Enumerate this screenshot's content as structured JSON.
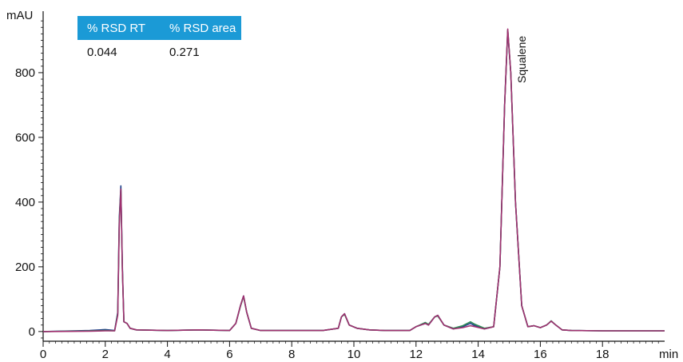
{
  "chart_data": {
    "type": "line",
    "title": "",
    "xlabel": "min",
    "ylabel": "mAU",
    "xlim": [
      0,
      20
    ],
    "ylim": [
      -30,
      990
    ],
    "xticks": [
      0,
      2,
      4,
      6,
      8,
      10,
      12,
      14,
      16,
      18
    ],
    "yticks": [
      0,
      200,
      400,
      600,
      800
    ],
    "annotations": [
      {
        "text": "Squalene",
        "x": 15.0,
        "y": 935
      }
    ],
    "table": {
      "headers": [
        "% RSD RT",
        "% RSD area"
      ],
      "values": [
        "0.044",
        "0.271"
      ]
    },
    "series": [
      {
        "color": "#1f3f8a",
        "x": [
          0,
          1.5,
          2.0,
          2.3,
          2.4,
          2.45,
          2.5,
          2.55,
          2.6,
          2.7,
          2.8,
          3.0,
          4,
          5,
          6,
          6.2,
          6.35,
          6.45,
          6.55,
          6.7,
          7,
          8,
          9,
          9.5,
          9.6,
          9.7,
          9.85,
          10.1,
          10.5,
          11,
          11.8,
          12.0,
          12.3,
          12.4,
          12.6,
          12.7,
          12.9,
          13.2,
          13.5,
          13.75,
          13.9,
          14.2,
          14.5,
          14.7,
          14.85,
          14.95,
          15.05,
          15.2,
          15.4,
          15.6,
          15.8,
          16.0,
          16.2,
          16.35,
          16.5,
          16.7,
          17,
          18,
          20
        ],
        "y": [
          0,
          3,
          6,
          3,
          60,
          350,
          450,
          200,
          30,
          25,
          10,
          5,
          3,
          5,
          3,
          25,
          80,
          110,
          60,
          10,
          3,
          3,
          3,
          10,
          45,
          55,
          20,
          10,
          5,
          3,
          3,
          15,
          25,
          20,
          45,
          50,
          20,
          8,
          15,
          25,
          18,
          8,
          15,
          200,
          700,
          930,
          800,
          400,
          80,
          15,
          18,
          12,
          20,
          32,
          20,
          5,
          3,
          2,
          2
        ]
      },
      {
        "color": "#2e8b57",
        "x": [
          0,
          1.5,
          2.0,
          2.3,
          2.4,
          2.45,
          2.5,
          2.55,
          2.6,
          2.7,
          2.8,
          3.0,
          4,
          5,
          6,
          6.2,
          6.35,
          6.45,
          6.55,
          6.7,
          7,
          8,
          9,
          9.5,
          9.6,
          9.7,
          9.85,
          10.1,
          10.5,
          11,
          11.8,
          12.0,
          12.3,
          12.4,
          12.6,
          12.7,
          12.9,
          13.2,
          13.5,
          13.75,
          13.9,
          14.2,
          14.5,
          14.7,
          14.85,
          14.95,
          15.05,
          15.2,
          15.4,
          15.6,
          15.8,
          16.0,
          16.2,
          16.35,
          16.5,
          16.7,
          17,
          18,
          20
        ],
        "y": [
          0,
          2,
          3,
          2,
          55,
          340,
          440,
          190,
          30,
          25,
          10,
          5,
          3,
          5,
          3,
          25,
          78,
          108,
          60,
          10,
          3,
          3,
          3,
          10,
          45,
          53,
          20,
          10,
          5,
          3,
          3,
          15,
          28,
          22,
          45,
          48,
          20,
          10,
          18,
          30,
          22,
          10,
          15,
          200,
          700,
          932,
          800,
          400,
          80,
          15,
          18,
          12,
          20,
          33,
          20,
          5,
          3,
          2,
          2
        ]
      },
      {
        "color": "#a0306f",
        "x": [
          0,
          1.5,
          2.0,
          2.3,
          2.4,
          2.45,
          2.5,
          2.55,
          2.6,
          2.7,
          2.8,
          3.0,
          4,
          5,
          6,
          6.2,
          6.35,
          6.45,
          6.55,
          6.7,
          7,
          8,
          9,
          9.5,
          9.6,
          9.7,
          9.85,
          10.1,
          10.5,
          11,
          11.8,
          12.0,
          12.3,
          12.4,
          12.6,
          12.7,
          12.9,
          13.2,
          13.5,
          13.75,
          13.9,
          14.2,
          14.5,
          14.7,
          14.85,
          14.95,
          15.05,
          15.2,
          15.4,
          15.6,
          15.8,
          16.0,
          16.2,
          16.35,
          16.5,
          16.7,
          17,
          18,
          20
        ],
        "y": [
          0,
          1,
          2,
          2,
          50,
          330,
          440,
          190,
          30,
          25,
          10,
          5,
          3,
          5,
          3,
          25,
          80,
          110,
          60,
          10,
          3,
          3,
          3,
          10,
          45,
          55,
          20,
          10,
          5,
          3,
          3,
          15,
          25,
          20,
          45,
          50,
          20,
          8,
          12,
          18,
          15,
          8,
          15,
          200,
          700,
          935,
          800,
          400,
          80,
          15,
          18,
          12,
          20,
          32,
          20,
          5,
          3,
          2,
          2
        ]
      }
    ]
  }
}
